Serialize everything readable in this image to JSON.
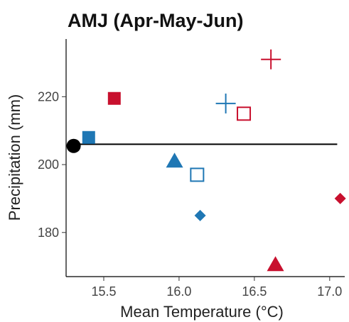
{
  "chart_data": {
    "type": "scatter",
    "title": "AMJ (Apr-May-Jun)",
    "xlabel": "Mean Temperature (°C)",
    "ylabel": "Precipitation (mm)",
    "xlim": [
      15.25,
      17.1
    ],
    "ylim": [
      167,
      237
    ],
    "x_ticks": [
      {
        "value": 15.5,
        "label": "15.5"
      },
      {
        "value": 16.0,
        "label": "16.0"
      },
      {
        "value": 16.5,
        "label": "16.5"
      },
      {
        "value": 17.0,
        "label": "17.0"
      }
    ],
    "y_ticks": [
      {
        "value": 180,
        "label": "180"
      },
      {
        "value": 200,
        "label": "200"
      },
      {
        "value": 220,
        "label": "220"
      }
    ],
    "grid": false,
    "reference_line": {
      "y": 206,
      "x_start": 15.3,
      "x_end": 17.05,
      "color": "#000000"
    },
    "points": [
      {
        "x": 15.3,
        "y": 205.5,
        "shape": "circle-filled",
        "color": "#000000"
      },
      {
        "x": 15.4,
        "y": 208,
        "shape": "square-filled",
        "color": "#1f77b4"
      },
      {
        "x": 15.57,
        "y": 219.5,
        "shape": "square-filled",
        "color": "#c8102e"
      },
      {
        "x": 15.97,
        "y": 201,
        "shape": "triangle-filled",
        "color": "#1f77b4"
      },
      {
        "x": 16.12,
        "y": 197,
        "shape": "square-open",
        "color": "#1f77b4"
      },
      {
        "x": 16.14,
        "y": 185,
        "shape": "diamond-filled",
        "color": "#1f77b4"
      },
      {
        "x": 16.31,
        "y": 218,
        "shape": "plus",
        "color": "#1f77b4"
      },
      {
        "x": 16.43,
        "y": 215,
        "shape": "square-open",
        "color": "#c8102e"
      },
      {
        "x": 16.61,
        "y": 231,
        "shape": "plus",
        "color": "#c8102e"
      },
      {
        "x": 16.64,
        "y": 170.5,
        "shape": "triangle-filled",
        "color": "#c8102e"
      },
      {
        "x": 17.07,
        "y": 190,
        "shape": "diamond-filled",
        "color": "#c8102e"
      }
    ]
  }
}
